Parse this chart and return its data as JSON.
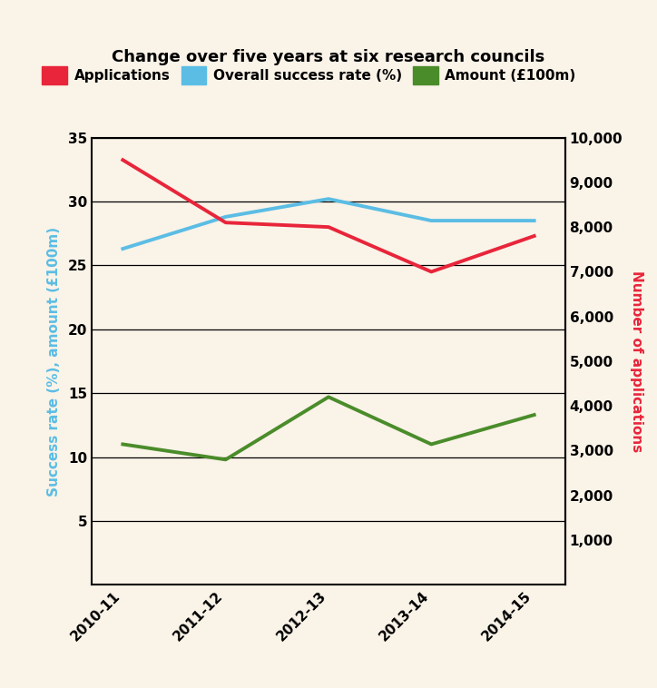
{
  "title": "Change over five years at six research councils",
  "x_labels": [
    "2010-11",
    "2011-12",
    "2012-13",
    "2013-14",
    "2014-15"
  ],
  "x_positions": [
    0,
    1,
    2,
    3,
    4
  ],
  "applications": [
    9500,
    8100,
    8000,
    7000,
    7800
  ],
  "success_rate": [
    26.3,
    28.8,
    30.2,
    28.5,
    28.5
  ],
  "amount": [
    11.0,
    9.8,
    14.7,
    11.0,
    13.3
  ],
  "left_ylim": [
    0,
    35
  ],
  "left_yticks": [
    5,
    10,
    15,
    20,
    25,
    30,
    35
  ],
  "right_ylim": [
    0,
    10000
  ],
  "right_yticks": [
    1000,
    2000,
    3000,
    4000,
    5000,
    6000,
    7000,
    8000,
    9000,
    10000
  ],
  "app_color": "#e8253a",
  "rate_color": "#5bbde4",
  "amount_color": "#4a8c2a",
  "bg_color": "#faf3e8",
  "legend_app_label": "Applications",
  "legend_rate_label": "Overall success rate (%)",
  "legend_amount_label": "Amount (£100m)",
  "left_ylabel": "Success rate (%), amount (£100m)",
  "right_ylabel": "Number of applications",
  "left_ylabel_color": "#5bbde4",
  "right_ylabel_color": "#e8253a",
  "line_width": 2.8,
  "title_fontsize": 13,
  "axis_fontsize": 11,
  "label_fontsize": 11
}
